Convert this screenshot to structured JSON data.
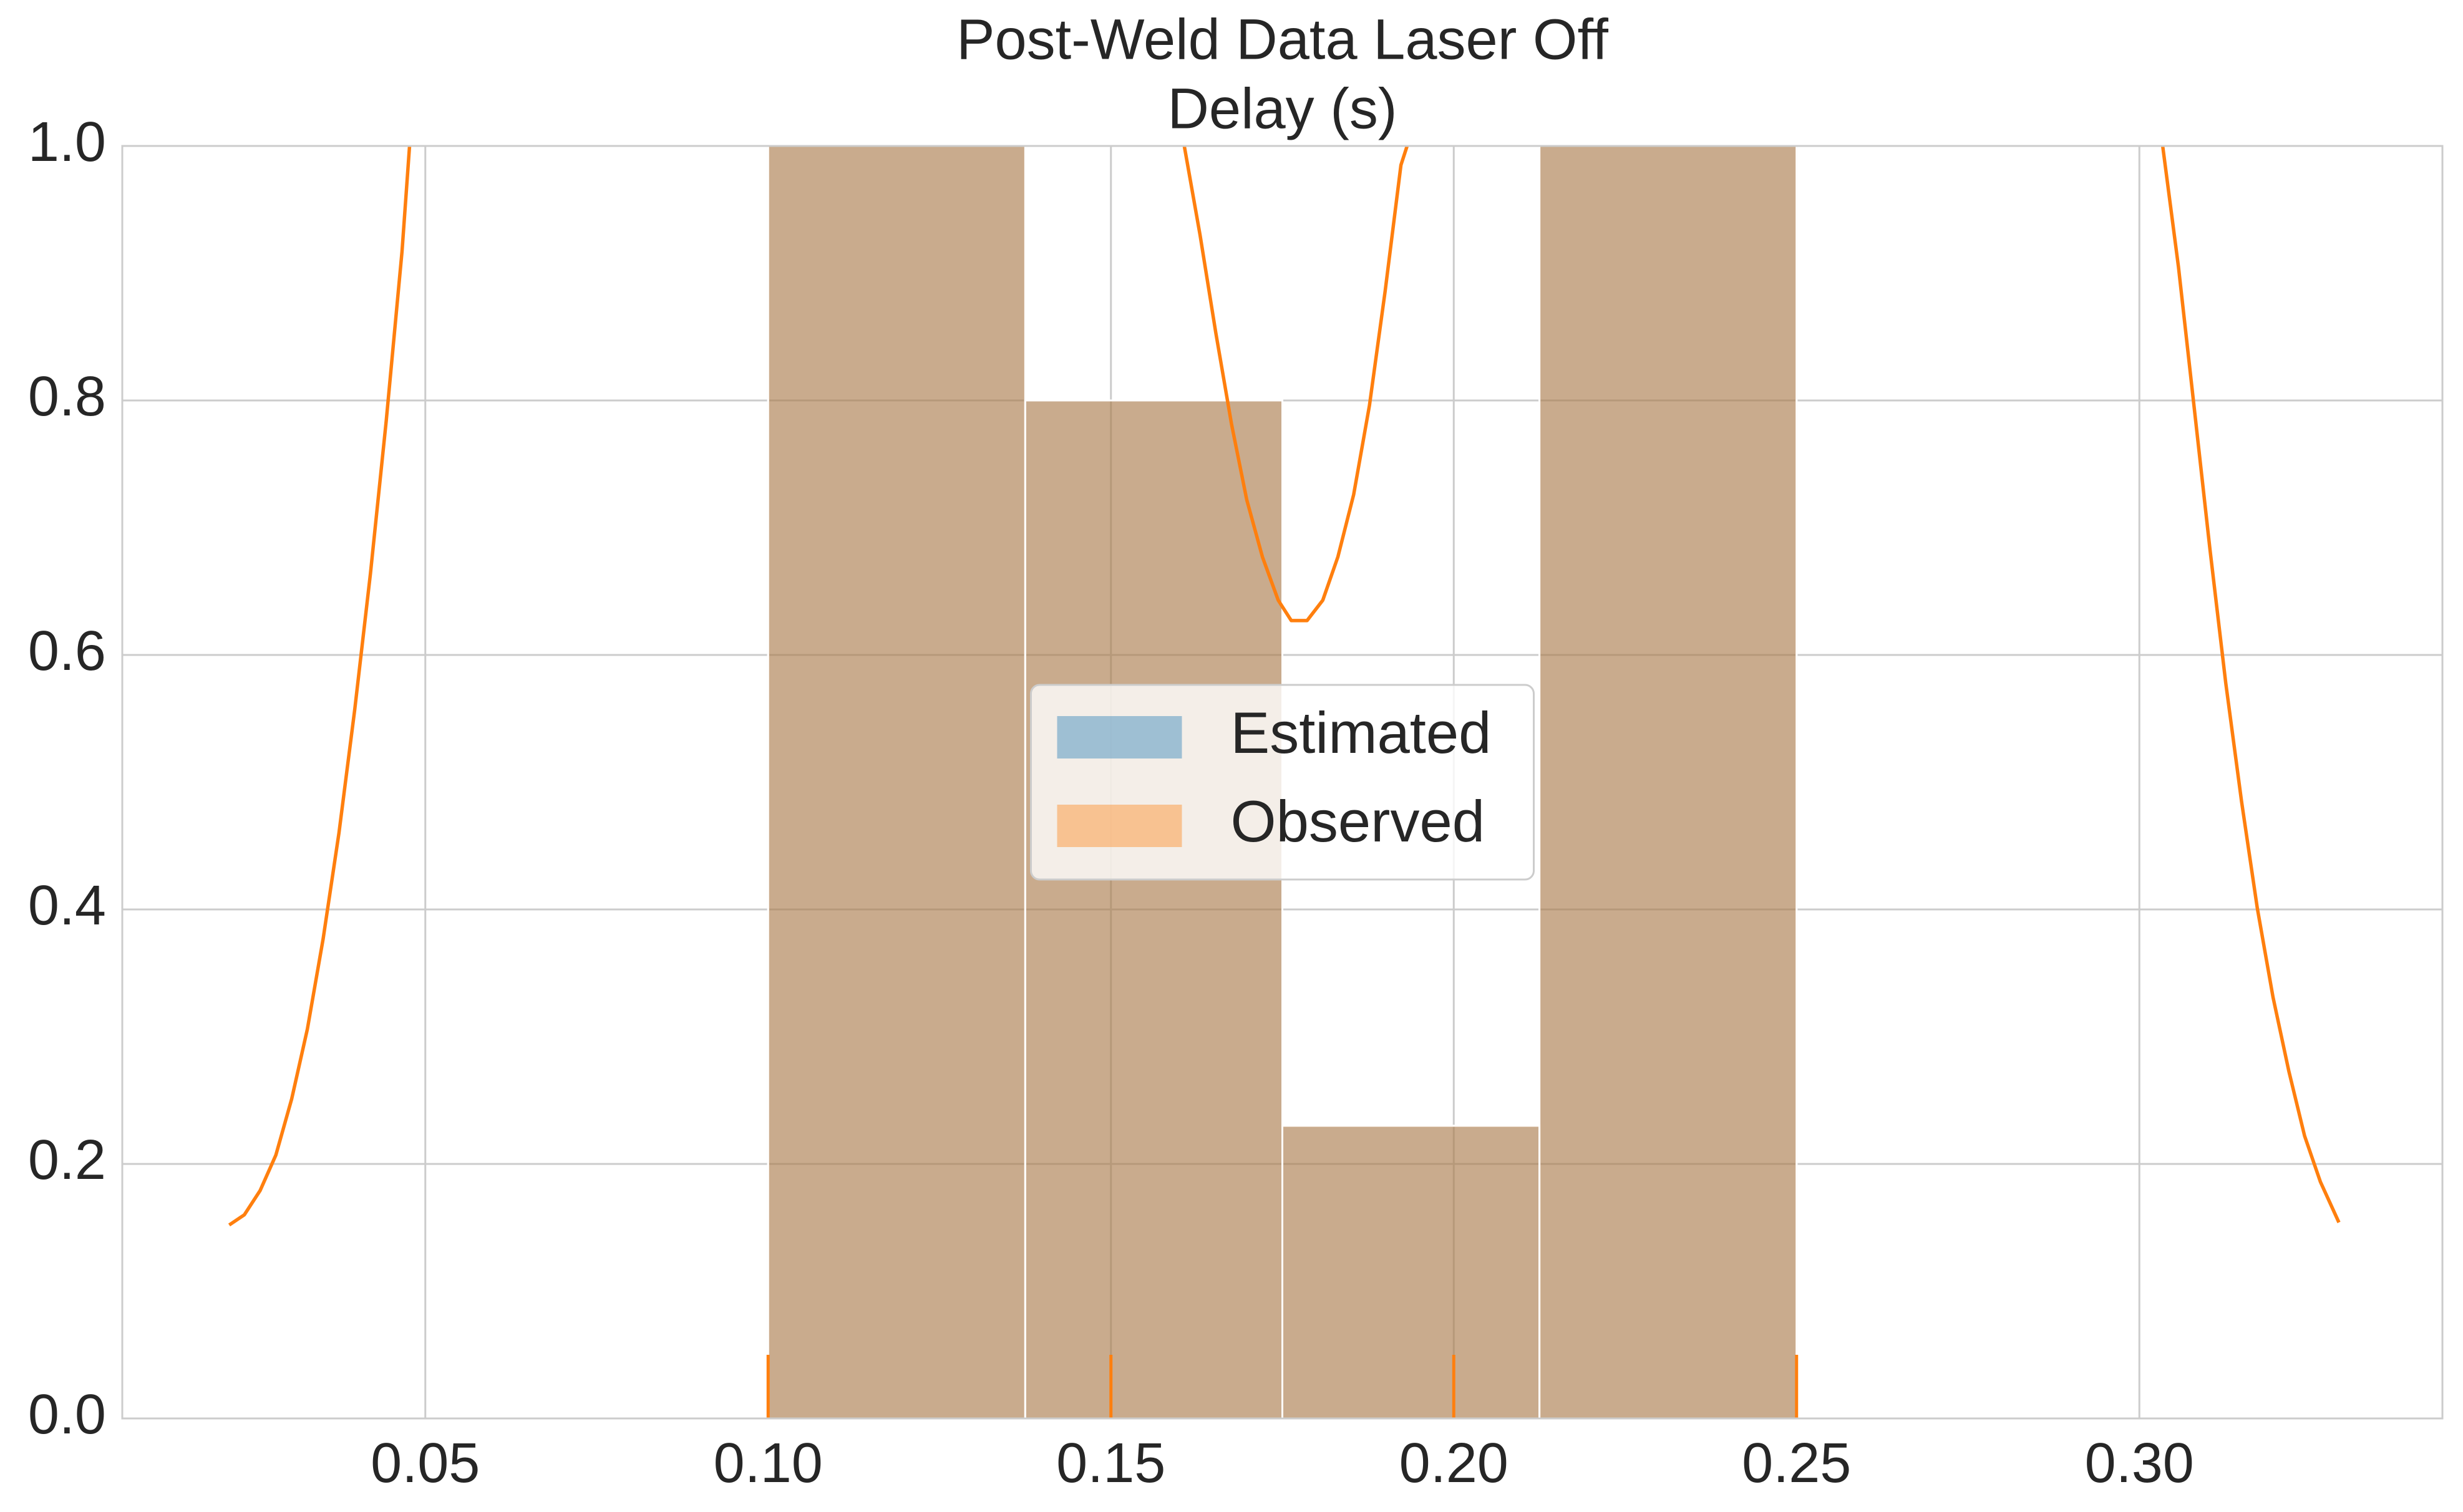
{
  "chart_data": {
    "type": "histogram",
    "title_lines": [
      "Post-Weld Data Laser Off",
      "Delay (s)"
    ],
    "bins": [
      0.1,
      0.1375,
      0.175,
      0.2125,
      0.25
    ],
    "series": [
      {
        "name": "Estimated",
        "color": "#1f77b4",
        "values": [
          1.0,
          0.8,
          0.23,
          1.0
        ]
      },
      {
        "name": "Observed",
        "color": "#ff7f0e",
        "values": [
          1.0,
          0.8,
          0.23,
          1.0
        ]
      }
    ],
    "kde": {
      "color": "#ff7f0e",
      "x": [
        0.0214,
        0.0236,
        0.0259,
        0.0282,
        0.0305,
        0.0328,
        0.0351,
        0.0374,
        0.0397,
        0.042,
        0.0443,
        0.0466,
        0.0477,
        null,
        0.1607,
        0.163,
        0.1653,
        0.1676,
        0.1698,
        0.1721,
        0.1744,
        0.1763,
        0.1786,
        0.1809,
        0.1831,
        0.1854,
        0.1877,
        0.19,
        0.1923,
        0.1932,
        null,
        0.3034,
        0.3057,
        0.308,
        0.3103,
        0.3126,
        0.3149,
        0.3172,
        0.3195,
        0.3218,
        0.3241,
        0.3264,
        0.3291
      ],
      "values": [
        0.152,
        0.16,
        0.179,
        0.207,
        0.251,
        0.306,
        0.377,
        0.46,
        0.557,
        0.664,
        0.784,
        0.917,
        1.0,
        null,
        1.0,
        0.93,
        0.853,
        0.781,
        0.722,
        0.677,
        0.643,
        0.627,
        0.627,
        0.643,
        0.677,
        0.726,
        0.796,
        0.886,
        0.985,
        1.0,
        null,
        1.0,
        0.905,
        0.794,
        0.683,
        0.578,
        0.485,
        0.401,
        0.331,
        0.273,
        0.222,
        0.186,
        0.154
      ]
    },
    "rug": {
      "color": "#ff7f0e",
      "x": [
        0.1,
        0.15,
        0.2,
        0.25
      ]
    },
    "xlim": [
      0.0058,
      0.3442
    ],
    "ylim": [
      0,
      1
    ],
    "xticks": [
      0.05,
      {
        "value": 0.1,
        "label": "0.10"
      },
      0.15,
      {
        "value": 0.2,
        "label": "0.20"
      },
      0.25,
      {
        "value": 0.3,
        "label": "0.30"
      }
    ],
    "yticks": [
      {
        "value": 0,
        "label": "0.0"
      },
      0.2,
      0.4,
      0.6,
      0.8,
      {
        "value": 1,
        "label": "1.0"
      }
    ],
    "grid": true,
    "legend": "center"
  }
}
